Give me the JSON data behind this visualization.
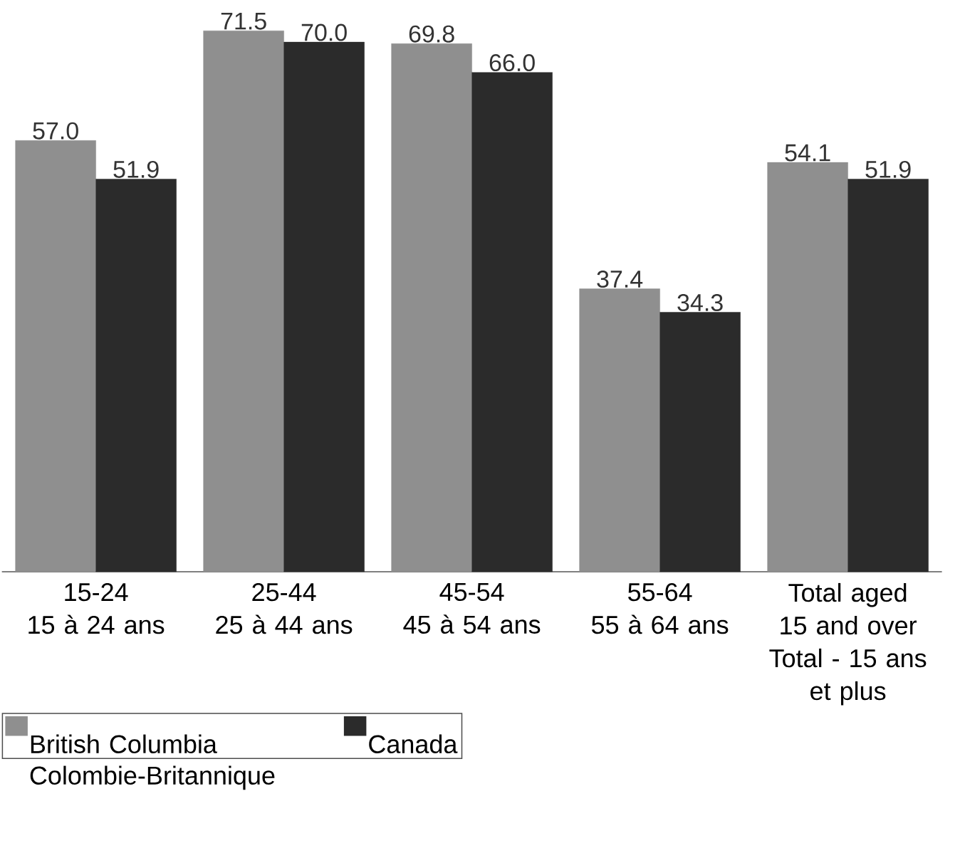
{
  "chart_data": {
    "type": "bar",
    "categories": [
      "15-24\n15 à 24 ans",
      "25-44\n25 à 44 ans",
      "45-54\n45 à 54 ans",
      "55-64\n55 à 64 ans",
      "Total aged\n15 and over\nTotal - 15 ans\net plus"
    ],
    "series": [
      {
        "name": "British Columbia\nColombie-Britannique",
        "color": "#8f8f8f",
        "values": [
          57.0,
          71.5,
          69.8,
          37.4,
          54.1
        ],
        "value_labels": [
          "57.0",
          "71.5",
          "69.8",
          "37.4",
          "54.1"
        ]
      },
      {
        "name": "Canada",
        "color": "#2b2b2b",
        "values": [
          51.9,
          70.0,
          66.0,
          34.3,
          51.9
        ],
        "value_labels": [
          "51.9",
          "70.0",
          "66.0",
          "34.3",
          "51.9"
        ]
      }
    ],
    "legend": "bottom left"
  }
}
